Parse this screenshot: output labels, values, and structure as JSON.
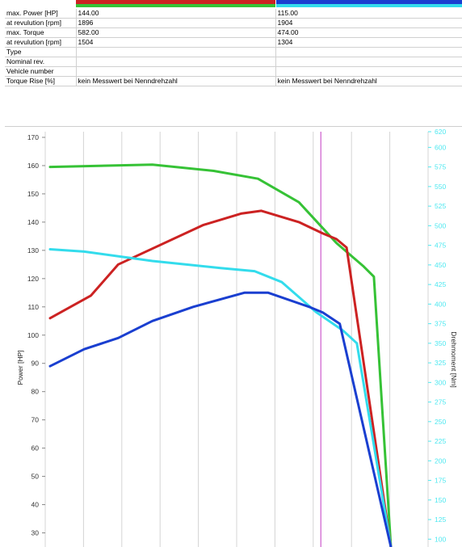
{
  "header": {
    "bar_colors": [
      [
        "#cc2222",
        "#36c236"
      ],
      [
        "#1a3fd0",
        "#33dcec"
      ]
    ]
  },
  "table": {
    "rows": [
      {
        "label": "max. Power [HP]",
        "v1": "144.00",
        "v2": "115.00"
      },
      {
        "label": "at revulution [rpm]",
        "v1": "1896",
        "v2": "1904"
      },
      {
        "label": "max. Torque",
        "v1": "582.00",
        "v2": "474.00"
      },
      {
        "label": "at revulution [rpm]",
        "v1": "1504",
        "v2": "1304"
      },
      {
        "label": "Type",
        "v1": "",
        "v2": ""
      },
      {
        "label": "Nominal rev.",
        "v1": "",
        "v2": ""
      },
      {
        "label": "Vehicle number",
        "v1": "",
        "v2": ""
      },
      {
        "label": "Torque Rise [%]",
        "v1": "kein Messwert bei Nenndrehzahl",
        "v2": "kein Messwert bei Nenndrehzahl"
      }
    ]
  },
  "chart_data": {
    "type": "line",
    "ylabel": "Power [HP]",
    "y2label": "Drehmoment [Nm]",
    "ylim": [
      25,
      172
    ],
    "y2lim": [
      90,
      620
    ],
    "yticks": [
      30,
      40,
      50,
      60,
      70,
      80,
      90,
      100,
      110,
      120,
      130,
      140,
      150,
      160,
      170
    ],
    "y2ticks": [
      100,
      125,
      150,
      175,
      200,
      225,
      250,
      275,
      300,
      325,
      350,
      375,
      400,
      425,
      450,
      475,
      500,
      525,
      550,
      575,
      600,
      620
    ],
    "x_gridlines": 10,
    "marker_x": 0.72,
    "grid": true,
    "series": [
      {
        "color": "#36c236",
        "axis": "right",
        "points": [
          [
            0,
            575
          ],
          [
            0.3,
            578
          ],
          [
            0.48,
            570
          ],
          [
            0.61,
            560
          ],
          [
            0.73,
            530
          ],
          [
            0.84,
            478
          ],
          [
            0.92,
            448
          ],
          [
            0.95,
            435
          ],
          [
            1.0,
            90
          ]
        ]
      },
      {
        "color": "#cc2222",
        "axis": "left",
        "points": [
          [
            0,
            106
          ],
          [
            0.12,
            114
          ],
          [
            0.2,
            125
          ],
          [
            0.45,
            139
          ],
          [
            0.56,
            143
          ],
          [
            0.62,
            144
          ],
          [
            0.73,
            140
          ],
          [
            0.8,
            136
          ],
          [
            0.84,
            134
          ],
          [
            0.87,
            131
          ],
          [
            1.0,
            25
          ]
        ]
      },
      {
        "color": "#33dcec",
        "axis": "right",
        "points": [
          [
            0,
            470
          ],
          [
            0.1,
            467
          ],
          [
            0.3,
            455
          ],
          [
            0.5,
            446
          ],
          [
            0.6,
            442
          ],
          [
            0.68,
            428
          ],
          [
            0.78,
            390
          ],
          [
            0.86,
            366
          ],
          [
            0.9,
            350
          ],
          [
            1.0,
            90
          ]
        ]
      },
      {
        "color": "#1a3fd0",
        "axis": "left",
        "points": [
          [
            0,
            89
          ],
          [
            0.1,
            95
          ],
          [
            0.2,
            99
          ],
          [
            0.3,
            105
          ],
          [
            0.42,
            110
          ],
          [
            0.57,
            115
          ],
          [
            0.64,
            115
          ],
          [
            0.76,
            110
          ],
          [
            0.8,
            108
          ],
          [
            0.85,
            104
          ],
          [
            1.0,
            25
          ]
        ]
      }
    ]
  }
}
